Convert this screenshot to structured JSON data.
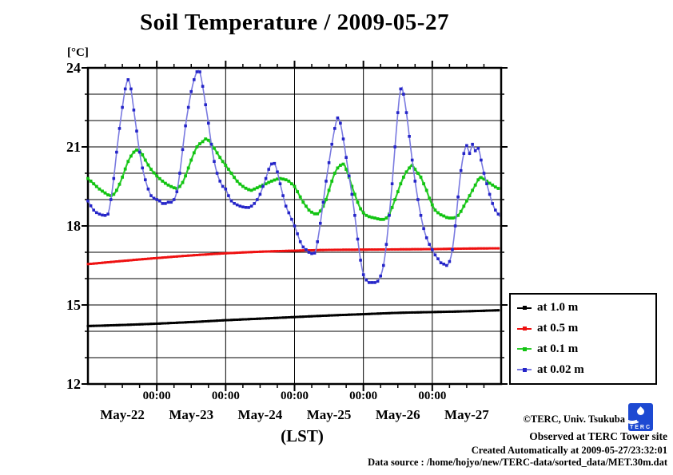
{
  "page": {
    "background": "#ffffff"
  },
  "chart_data": {
    "type": "line",
    "title": "Soil Temperature / 2009-05-27",
    "xlabel": "(LST)",
    "ylabel_unit": "[°C]",
    "ylim": [
      12,
      24
    ],
    "y_major_step": 3,
    "y_minor_step": 1,
    "y_major_tick_labels": [
      "24",
      "21",
      "18",
      "15",
      "12"
    ],
    "x_hours_total": 144,
    "x_unit": "hours since 2009-05-22 00:00 LST",
    "x_minor_step_hours": 6,
    "x_major_step_hours": 24,
    "x_midnight_label": "00:00",
    "x_day_labels": [
      "May-22",
      "May-23",
      "May-24",
      "May-25",
      "May-26",
      "May-27"
    ],
    "grid": {
      "horizontal_every_c": 1,
      "vertical_every_hours": 24
    },
    "legend_position": "outside-right",
    "series": [
      {
        "name": "at 1.0 m",
        "depth_m": 1.0,
        "line_color": "#000000",
        "marker_color": "#000000",
        "line_width": 2.8,
        "marker_size": 3.0,
        "marker_step_hours": 1,
        "points": [
          [
            0,
            14.2
          ],
          [
            12,
            14.24
          ],
          [
            24,
            14.29
          ],
          [
            36,
            14.35
          ],
          [
            48,
            14.42
          ],
          [
            60,
            14.48
          ],
          [
            72,
            14.54
          ],
          [
            84,
            14.6
          ],
          [
            96,
            14.65
          ],
          [
            108,
            14.7
          ],
          [
            120,
            14.73
          ],
          [
            132,
            14.76
          ],
          [
            143.5,
            14.8
          ]
        ]
      },
      {
        "name": "at 0.5 m",
        "depth_m": 0.5,
        "line_color": "#ee1111",
        "marker_color": "#ee1111",
        "line_width": 2.8,
        "marker_size": 3.0,
        "marker_step_hours": 1,
        "points": [
          [
            0,
            16.55
          ],
          [
            12,
            16.67
          ],
          [
            24,
            16.78
          ],
          [
            36,
            16.88
          ],
          [
            48,
            16.96
          ],
          [
            60,
            17.02
          ],
          [
            72,
            17.06
          ],
          [
            84,
            17.09
          ],
          [
            96,
            17.1
          ],
          [
            108,
            17.11
          ],
          [
            120,
            17.12
          ],
          [
            132,
            17.14
          ],
          [
            143.5,
            17.15
          ]
        ]
      },
      {
        "name": "at 0.1 m",
        "depth_m": 0.1,
        "line_color": "#2ecc2e",
        "marker_color": "#12c412",
        "line_width": 2.2,
        "marker_size": 3.8,
        "marker_step_hours": 1,
        "points": [
          [
            0,
            19.8
          ],
          [
            2,
            19.6
          ],
          [
            4,
            19.4
          ],
          [
            6,
            19.25
          ],
          [
            7,
            19.18
          ],
          [
            8,
            19.15
          ],
          [
            9,
            19.2
          ],
          [
            10,
            19.35
          ],
          [
            12,
            19.85
          ],
          [
            14,
            20.45
          ],
          [
            16,
            20.8
          ],
          [
            17,
            20.88
          ],
          [
            18,
            20.85
          ],
          [
            19,
            20.7
          ],
          [
            20,
            20.5
          ],
          [
            22,
            20.15
          ],
          [
            24,
            19.9
          ],
          [
            26,
            19.7
          ],
          [
            28,
            19.55
          ],
          [
            30,
            19.45
          ],
          [
            31,
            19.42
          ],
          [
            32,
            19.5
          ],
          [
            33,
            19.65
          ],
          [
            34,
            19.9
          ],
          [
            36,
            20.5
          ],
          [
            38,
            21.0
          ],
          [
            40,
            21.2
          ],
          [
            41,
            21.3
          ],
          [
            42,
            21.25
          ],
          [
            43,
            21.1
          ],
          [
            44,
            20.95
          ],
          [
            46,
            20.6
          ],
          [
            48,
            20.3
          ],
          [
            50,
            20.0
          ],
          [
            52,
            19.7
          ],
          [
            54,
            19.5
          ],
          [
            56,
            19.38
          ],
          [
            57,
            19.35
          ],
          [
            58,
            19.4
          ],
          [
            60,
            19.5
          ],
          [
            62,
            19.6
          ],
          [
            64,
            19.7
          ],
          [
            66,
            19.78
          ],
          [
            67,
            19.8
          ],
          [
            68,
            19.78
          ],
          [
            70,
            19.7
          ],
          [
            71,
            19.6
          ],
          [
            72,
            19.5
          ],
          [
            73,
            19.3
          ],
          [
            74,
            19.1
          ],
          [
            75,
            18.9
          ],
          [
            76,
            18.75
          ],
          [
            77,
            18.6
          ],
          [
            78,
            18.52
          ],
          [
            79.5,
            18.45
          ],
          [
            80.5,
            18.5
          ],
          [
            82,
            18.75
          ],
          [
            83,
            19.0
          ],
          [
            84,
            19.35
          ],
          [
            85,
            19.7
          ],
          [
            86,
            20.0
          ],
          [
            87,
            20.2
          ],
          [
            88,
            20.3
          ],
          [
            88.7,
            20.35
          ],
          [
            89.5,
            20.3
          ],
          [
            90,
            20.15
          ],
          [
            91,
            19.85
          ],
          [
            92,
            19.5
          ],
          [
            93,
            19.2
          ],
          [
            94,
            18.9
          ],
          [
            95,
            18.65
          ],
          [
            96,
            18.5
          ],
          [
            97,
            18.4
          ],
          [
            98,
            18.35
          ],
          [
            100,
            18.3
          ],
          [
            102,
            18.25
          ],
          [
            103,
            18.25
          ],
          [
            104,
            18.3
          ],
          [
            105,
            18.45
          ],
          [
            106,
            18.7
          ],
          [
            107,
            19.0
          ],
          [
            108,
            19.3
          ],
          [
            109,
            19.6
          ],
          [
            110,
            19.85
          ],
          [
            111,
            20.05
          ],
          [
            112,
            20.2
          ],
          [
            112.7,
            20.3
          ],
          [
            113.5,
            20.25
          ],
          [
            114,
            20.15
          ],
          [
            115,
            20.0
          ],
          [
            116,
            19.85
          ],
          [
            117,
            19.6
          ],
          [
            118,
            19.35
          ],
          [
            119,
            19.05
          ],
          [
            120,
            18.8
          ],
          [
            121,
            18.6
          ],
          [
            122,
            18.5
          ],
          [
            123,
            18.42
          ],
          [
            124,
            18.38
          ],
          [
            125,
            18.32
          ],
          [
            126,
            18.3
          ],
          [
            127.5,
            18.3
          ],
          [
            128.5,
            18.35
          ],
          [
            129,
            18.4
          ],
          [
            130,
            18.55
          ],
          [
            131,
            18.75
          ],
          [
            132,
            18.95
          ],
          [
            133,
            19.15
          ],
          [
            134,
            19.35
          ],
          [
            135,
            19.55
          ],
          [
            136,
            19.75
          ],
          [
            136.6,
            19.85
          ],
          [
            137.5,
            19.8
          ],
          [
            138,
            19.78
          ],
          [
            139,
            19.7
          ],
          [
            140,
            19.62
          ],
          [
            141,
            19.55
          ],
          [
            142,
            19.48
          ],
          [
            143.5,
            19.4
          ]
        ]
      },
      {
        "name": "at 0.02 m",
        "depth_m": 0.02,
        "line_color": "#7a7ae0",
        "marker_color": "#2525c8",
        "line_width": 1.6,
        "marker_size": 3.6,
        "marker_step_hours": 1,
        "points": [
          [
            0,
            18.95
          ],
          [
            2,
            18.6
          ],
          [
            4,
            18.45
          ],
          [
            6,
            18.4
          ],
          [
            7,
            18.45
          ],
          [
            8,
            19.0
          ],
          [
            9,
            19.8
          ],
          [
            10,
            20.8
          ],
          [
            11,
            21.7
          ],
          [
            12,
            22.5
          ],
          [
            13,
            23.2
          ],
          [
            14,
            23.55
          ],
          [
            15,
            23.2
          ],
          [
            16,
            22.4
          ],
          [
            17,
            21.6
          ],
          [
            18,
            20.8
          ],
          [
            19,
            20.2
          ],
          [
            20,
            19.75
          ],
          [
            21,
            19.4
          ],
          [
            22,
            19.15
          ],
          [
            23,
            19.05
          ],
          [
            24,
            19.0
          ],
          [
            25,
            18.95
          ],
          [
            26,
            18.85
          ],
          [
            27,
            18.85
          ],
          [
            28,
            18.9
          ],
          [
            29,
            18.9
          ],
          [
            30,
            19.0
          ],
          [
            31,
            19.3
          ],
          [
            32,
            20.0
          ],
          [
            33,
            20.9
          ],
          [
            34,
            21.8
          ],
          [
            35,
            22.5
          ],
          [
            36,
            23.1
          ],
          [
            37,
            23.55
          ],
          [
            38,
            23.85
          ],
          [
            38.7,
            23.9
          ],
          [
            40,
            23.3
          ],
          [
            41,
            22.6
          ],
          [
            42,
            21.9
          ],
          [
            43,
            21.1
          ],
          [
            44,
            20.45
          ],
          [
            45,
            20.0
          ],
          [
            46,
            19.7
          ],
          [
            47,
            19.5
          ],
          [
            48,
            19.4
          ],
          [
            49,
            19.15
          ],
          [
            50,
            18.95
          ],
          [
            52,
            18.8
          ],
          [
            54,
            18.72
          ],
          [
            56,
            18.7
          ],
          [
            57,
            18.75
          ],
          [
            58,
            18.85
          ],
          [
            59,
            19.0
          ],
          [
            60,
            19.2
          ],
          [
            61,
            19.5
          ],
          [
            62,
            19.8
          ],
          [
            63,
            20.15
          ],
          [
            64,
            20.35
          ],
          [
            64.7,
            20.4
          ],
          [
            65.5,
            20.25
          ],
          [
            66,
            20.05
          ],
          [
            67,
            19.6
          ],
          [
            68,
            19.15
          ],
          [
            69,
            18.75
          ],
          [
            70,
            18.5
          ],
          [
            71,
            18.25
          ],
          [
            72,
            18.0
          ],
          [
            73,
            17.7
          ],
          [
            74,
            17.4
          ],
          [
            75,
            17.2
          ],
          [
            76,
            17.1
          ],
          [
            77,
            17.0
          ],
          [
            78,
            16.95
          ],
          [
            78.7,
            16.95
          ],
          [
            79.5,
            17.1
          ],
          [
            80,
            17.4
          ],
          [
            81,
            18.1
          ],
          [
            82,
            18.9
          ],
          [
            83,
            19.7
          ],
          [
            84,
            20.4
          ],
          [
            85,
            21.1
          ],
          [
            86,
            21.7
          ],
          [
            86.5,
            21.95
          ],
          [
            87,
            22.1
          ],
          [
            87.5,
            22.05
          ],
          [
            88,
            21.9
          ],
          [
            89,
            21.3
          ],
          [
            90,
            20.6
          ],
          [
            91,
            19.9
          ],
          [
            92,
            19.2
          ],
          [
            93,
            18.4
          ],
          [
            94,
            17.5
          ],
          [
            95,
            16.7
          ],
          [
            96,
            16.15
          ],
          [
            97,
            15.95
          ],
          [
            98,
            15.85
          ],
          [
            99,
            15.85
          ],
          [
            100,
            15.85
          ],
          [
            101,
            15.9
          ],
          [
            102,
            16.1
          ],
          [
            103,
            16.5
          ],
          [
            104,
            17.3
          ],
          [
            105,
            18.4
          ],
          [
            106,
            19.6
          ],
          [
            107,
            21.0
          ],
          [
            108,
            22.3
          ],
          [
            109,
            23.2
          ],
          [
            109.5,
            23.25
          ],
          [
            110,
            23.0
          ],
          [
            111,
            22.3
          ],
          [
            112,
            21.4
          ],
          [
            113,
            20.5
          ],
          [
            114,
            19.7
          ],
          [
            115,
            19.0
          ],
          [
            116,
            18.4
          ],
          [
            117,
            17.9
          ],
          [
            118,
            17.55
          ],
          [
            119,
            17.3
          ],
          [
            120,
            17.1
          ],
          [
            121,
            16.9
          ],
          [
            122,
            16.75
          ],
          [
            123,
            16.6
          ],
          [
            124,
            16.55
          ],
          [
            125,
            16.5
          ],
          [
            126,
            16.65
          ],
          [
            127,
            17.1
          ],
          [
            128,
            18.0
          ],
          [
            129,
            19.1
          ],
          [
            130,
            20.1
          ],
          [
            131,
            20.75
          ],
          [
            132,
            21.05
          ],
          [
            133,
            20.75
          ],
          [
            134,
            21.1
          ],
          [
            135,
            20.85
          ],
          [
            136,
            20.95
          ],
          [
            137,
            20.5
          ],
          [
            138,
            20.0
          ],
          [
            139,
            19.6
          ],
          [
            140,
            19.2
          ],
          [
            141,
            18.85
          ],
          [
            142,
            18.6
          ],
          [
            143,
            18.45
          ],
          [
            143.5,
            18.35
          ]
        ]
      }
    ]
  },
  "legend": {
    "entries": [
      {
        "label": "at 1.0 m"
      },
      {
        "label": "at 0.5 m"
      },
      {
        "label": "at 0.1 m"
      },
      {
        "label": "at 0.02 m"
      }
    ]
  },
  "footer": {
    "credit": "©TERC, Univ. Tsukuba",
    "observed": "Observed at TERC Tower site",
    "created": "Created Automatically at 2009-05-27/23:32:01",
    "source": "Data source : /home/hojyo/new/TERC-data/sorted_data/MET.30m.dat",
    "logo_text": "TERC"
  }
}
